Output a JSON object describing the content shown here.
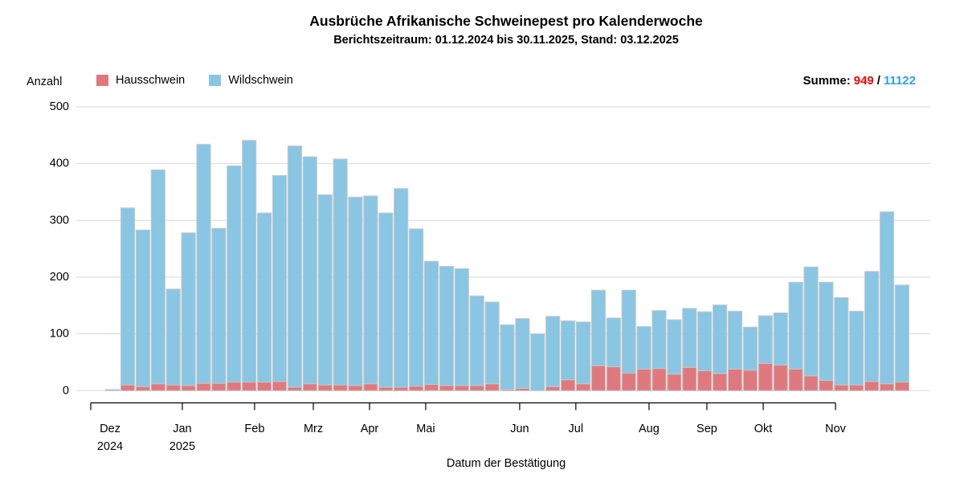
{
  "title": "Ausbrüche Afrikanische Schweinepest pro Kalenderwoche",
  "subtitle": "Berichtszeitraum: 01.12.2024 bis 30.11.2025, Stand: 03.12.2025",
  "ylabel": "Anzahl",
  "xlabel": "Datum der Bestätigung",
  "legend": [
    {
      "label": "Hausschwein",
      "color": "#E0797E"
    },
    {
      "label": "Wildschwein",
      "color": "#89C6E3"
    }
  ],
  "summe": {
    "label": "Summe:",
    "hausschwein": "949",
    "sep": "/",
    "wildschwein": "11122",
    "haus_color": "#FF0000",
    "wild_color": "#2E9FE8"
  },
  "chart_data": {
    "type": "bar",
    "stacked": true,
    "x_unit": "Kalenderwoche",
    "n_weeks": 53,
    "ylim": [
      0,
      500
    ],
    "yticks": [
      0,
      100,
      200,
      300,
      400,
      500
    ],
    "grid": true,
    "legend_position": "top-left",
    "series": [
      {
        "name": "Hausschwein",
        "color": "#E0797E",
        "total": 949,
        "values": [
          0,
          10,
          7,
          12,
          10,
          9,
          13,
          13,
          15,
          15,
          15,
          16,
          6,
          12,
          10,
          10,
          9,
          12,
          6,
          6,
          8,
          11,
          9,
          9,
          9,
          12,
          2,
          4,
          0,
          7,
          19,
          12,
          44,
          42,
          31,
          38,
          39,
          29,
          41,
          35,
          30,
          38,
          36,
          48,
          45,
          38,
          26,
          18,
          10,
          10,
          16,
          12,
          15
        ]
      },
      {
        "name": "Wildschwein",
        "color": "#89C6E3",
        "total": 11122,
        "values": [
          2,
          312,
          276,
          377,
          169,
          269,
          421,
          273,
          381,
          426,
          298,
          363,
          425,
          400,
          335,
          398,
          332,
          331,
          307,
          350,
          277,
          217,
          210,
          206,
          158,
          144,
          114,
          123,
          100,
          124,
          104,
          109,
          133,
          86,
          146,
          75,
          102,
          96,
          104,
          104,
          121,
          102,
          76,
          84,
          92,
          153,
          192,
          173,
          154,
          130,
          194,
          303,
          171
        ]
      }
    ],
    "month_ticks": [
      {
        "label": "Dez",
        "sublabel": "2024",
        "tick_offset": -0.98,
        "label_offset": 0.29
      },
      {
        "label": "Jan",
        "sublabel": "2025",
        "tick_offset": 5.05,
        "label_offset": 5.05
      },
      {
        "label": "Feb",
        "tick_offset": 9.81,
        "label_offset": 9.81
      },
      {
        "label": "Mrz",
        "tick_offset": 13.68,
        "label_offset": 13.68
      },
      {
        "label": "Apr",
        "tick_offset": 17.38,
        "label_offset": 17.38
      },
      {
        "label": "Mai",
        "tick_offset": 21.08,
        "label_offset": 21.08
      },
      {
        "label": "Jun",
        "tick_offset": 27.27,
        "label_offset": 27.27
      },
      {
        "label": "Jul",
        "tick_offset": 30.97,
        "label_offset": 30.97
      },
      {
        "label": "Aug",
        "tick_offset": 35.79,
        "label_offset": 35.79
      },
      {
        "label": "Sep",
        "tick_offset": 39.6,
        "label_offset": 39.6
      },
      {
        "label": "Okt",
        "tick_offset": 43.31,
        "label_offset": 43.31
      },
      {
        "label": "Nov",
        "tick_offset": 48.07,
        "label_offset": 48.07
      }
    ],
    "grid_color": "#D8D8D8",
    "bar_stroke_color": "#C8C8C8",
    "axis_color": "#000000"
  }
}
